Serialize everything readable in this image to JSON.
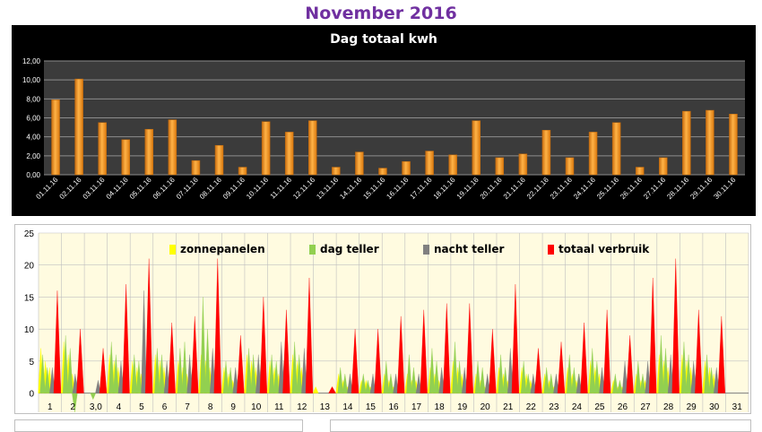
{
  "page": {
    "title": "November 2016"
  },
  "chart_data": [
    {
      "type": "bar",
      "title": "Dag totaal kwh",
      "categories": [
        "01.11.16",
        "02.11.16",
        "03.11.16",
        "04.11.16",
        "05.11.16",
        "06.11.16",
        "07.11.16",
        "08.11.16",
        "09.11.16",
        "10.11.16",
        "11.11.16",
        "12.11.16",
        "13.11.16",
        "14.11.16",
        "15.11.16",
        "16.11.16",
        "17.11.16",
        "18.11.16",
        "19.11.16",
        "20.11.16",
        "21.11.16",
        "22.11.16",
        "23.11.16",
        "24.11.16",
        "25.11.16",
        "26.11.16",
        "27.11.16",
        "28.11.16",
        "29.11.16",
        "30.11.16"
      ],
      "values": [
        7.9,
        10.1,
        5.5,
        3.7,
        4.8,
        5.8,
        1.5,
        3.1,
        0.8,
        5.6,
        4.5,
        5.7,
        0.8,
        2.4,
        0.7,
        1.4,
        2.5,
        2.1,
        5.7,
        1.8,
        2.2,
        4.7,
        1.8,
        4.5,
        5.5,
        0.8,
        1.8,
        6.7,
        6.8,
        6.4
      ],
      "ylim": [
        0,
        12
      ],
      "yticks": [
        "0,00",
        "2,00",
        "4,00",
        "6,00",
        "8,00",
        "10,00",
        "12,00"
      ],
      "grid": true,
      "colors": {
        "background": "#000000",
        "plot": "#3b3b3b",
        "bar": "#f39a2b",
        "bar_edge": "#c06a0c",
        "grid": "#8c8c8c",
        "text": "#ffffff"
      }
    },
    {
      "type": "area",
      "ylim": [
        0,
        25
      ],
      "ymin": -3,
      "yticks": [
        0,
        5,
        10,
        15,
        20,
        25
      ],
      "categories": [
        "1",
        "2",
        "3,0",
        "4",
        "5",
        "6",
        "7",
        "8",
        "9",
        "10",
        "11",
        "12",
        "13",
        "14",
        "15",
        "16",
        "17",
        "18",
        "19",
        "20",
        "21",
        "22",
        "23",
        "24",
        "25",
        "26",
        "27",
        "28",
        "29",
        "30",
        "31"
      ],
      "series": [
        {
          "name": "zonnepanelen",
          "color": "#ffff00",
          "values": [
            [
              7,
              5,
              4
            ],
            [
              8,
              6,
              3
            ],
            [
              0,
              0,
              0
            ],
            [
              6,
              5,
              4
            ],
            [
              5,
              4,
              3
            ],
            [
              6,
              5,
              4
            ],
            [
              5,
              4,
              3
            ],
            [
              6,
              5,
              4
            ],
            [
              4,
              3,
              2
            ],
            [
              6,
              5,
              4
            ],
            [
              5,
              4,
              3
            ],
            [
              6,
              5,
              4
            ],
            [
              1,
              0,
              0
            ],
            [
              3,
              2,
              1
            ],
            [
              2,
              2,
              1
            ],
            [
              3,
              2,
              1
            ],
            [
              3,
              2,
              2
            ],
            [
              4,
              3,
              2
            ],
            [
              5,
              4,
              3
            ],
            [
              3,
              2,
              1
            ],
            [
              4,
              3,
              2
            ],
            [
              4,
              3,
              2
            ],
            [
              3,
              2,
              1
            ],
            [
              4,
              3,
              2
            ],
            [
              5,
              4,
              3
            ],
            [
              2,
              1,
              1
            ],
            [
              3,
              2,
              2
            ],
            [
              6,
              5,
              4
            ],
            [
              6,
              5,
              4
            ],
            [
              5,
              4,
              3
            ],
            [
              0,
              0,
              0
            ]
          ]
        },
        {
          "name": "dag teller",
          "color": "#92d050",
          "values": [
            [
              6,
              4,
              2
            ],
            [
              9,
              7,
              -3
            ],
            [
              0,
              -1,
              0
            ],
            [
              8,
              6,
              3
            ],
            [
              6,
              5,
              3
            ],
            [
              7,
              6,
              3
            ],
            [
              7,
              8,
              3
            ],
            [
              15,
              10,
              3
            ],
            [
              5,
              4,
              2
            ],
            [
              7,
              6,
              3
            ],
            [
              6,
              5,
              3
            ],
            [
              8,
              6,
              3
            ],
            [
              0,
              0,
              0
            ],
            [
              4,
              3,
              2
            ],
            [
              3,
              2,
              2
            ],
            [
              5,
              3,
              2
            ],
            [
              6,
              4,
              2
            ],
            [
              7,
              5,
              2
            ],
            [
              8,
              5,
              3
            ],
            [
              5,
              4,
              2
            ],
            [
              6,
              4,
              3
            ],
            [
              5,
              3,
              2
            ],
            [
              4,
              3,
              2
            ],
            [
              6,
              4,
              3
            ],
            [
              7,
              5,
              3
            ],
            [
              3,
              2,
              2
            ],
            [
              5,
              3,
              2
            ],
            [
              9,
              7,
              3
            ],
            [
              8,
              6,
              3
            ],
            [
              6,
              4,
              3
            ],
            [
              0,
              0,
              0
            ]
          ]
        },
        {
          "name": "nacht teller",
          "color": "#808080",
          "values": [
            [
              4,
              3
            ],
            [
              3,
              3
            ],
            [
              2,
              1
            ],
            [
              5,
              4
            ],
            [
              16,
              5
            ],
            [
              5,
              4
            ],
            [
              6,
              4
            ],
            [
              7,
              5
            ],
            [
              4,
              3
            ],
            [
              6,
              5
            ],
            [
              8,
              5
            ],
            [
              7,
              5
            ],
            [
              0,
              0
            ],
            [
              3,
              2
            ],
            [
              3,
              2
            ],
            [
              3,
              2
            ],
            [
              3,
              2
            ],
            [
              4,
              3
            ],
            [
              4,
              3
            ],
            [
              3,
              2
            ],
            [
              7,
              5
            ],
            [
              3,
              2
            ],
            [
              3,
              2
            ],
            [
              3,
              2
            ],
            [
              4,
              3
            ],
            [
              5,
              3
            ],
            [
              5,
              4
            ],
            [
              6,
              5
            ],
            [
              5,
              4
            ],
            [
              4,
              3
            ],
            [
              0,
              0
            ]
          ]
        },
        {
          "name": "totaal verbruik",
          "color": "#ff0000",
          "values": [
            16,
            10,
            7,
            17,
            21,
            11,
            12,
            21,
            9,
            15,
            13,
            18,
            1,
            10,
            10,
            12,
            13,
            14,
            14,
            10,
            17,
            7,
            8,
            11,
            13,
            9,
            18,
            21,
            13,
            12,
            0
          ]
        }
      ],
      "grid": true,
      "colors": {
        "plot": "#fffbe0",
        "grid": "#bfbfbf"
      }
    }
  ]
}
